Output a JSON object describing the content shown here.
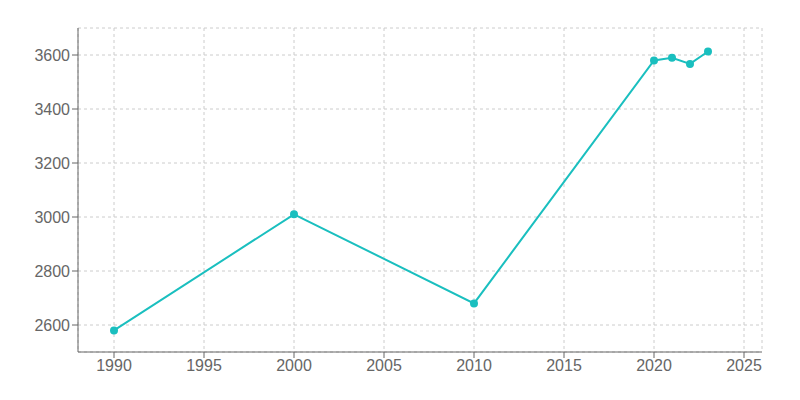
{
  "chart_data": {
    "type": "line",
    "x": [
      1990,
      2000,
      2010,
      2020,
      2021,
      2022,
      2023
    ],
    "values": [
      2580,
      3010,
      2680,
      3580,
      3590,
      3567,
      3613
    ],
    "color": "#1ABFBF",
    "marker": "circle",
    "line_style": "solid",
    "xlim": [
      1988,
      2026
    ],
    "ylim": [
      2500,
      3700
    ],
    "xticks": [
      1990,
      1995,
      2000,
      2005,
      2010,
      2015,
      2020,
      2025
    ],
    "yticks": [
      2600,
      2800,
      3000,
      3200,
      3400,
      3600
    ],
    "grid": true
  }
}
